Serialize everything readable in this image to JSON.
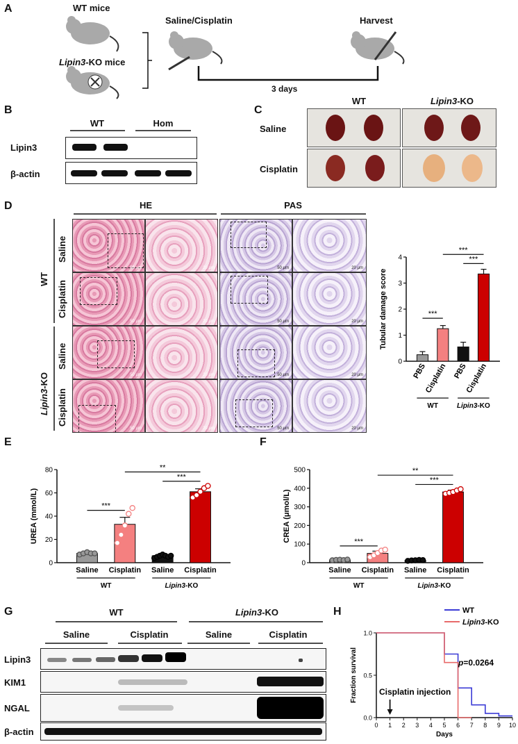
{
  "panels": {
    "A": "A",
    "B": "B",
    "C": "C",
    "D": "D",
    "E": "E",
    "F": "F",
    "G": "G",
    "H": "H"
  },
  "panel_a": {
    "wt": "WT mice",
    "ko_gene": "Lipin3",
    "ko_suffix": "-KO mice",
    "treatment": "Saline/Cisplatin",
    "harvest": "Harvest",
    "duration": "3 days"
  },
  "panel_b": {
    "groups": [
      "WT",
      "Hom"
    ],
    "rows": [
      "Lipin3",
      "β-actin"
    ]
  },
  "panel_c": {
    "cols": [
      "WT",
      "Lipin3",
      "-KO"
    ],
    "rows": [
      "Saline",
      "Cisplatin"
    ]
  },
  "panel_d": {
    "stains": [
      "HE",
      "PAS"
    ],
    "genotypes": [
      "WT",
      "Lipin3",
      "-KO"
    ],
    "rows": [
      "Saline",
      "Cisplatin",
      "Saline",
      "Cisplatin"
    ],
    "scale_50": "50 μm",
    "scale_20": "20 μm"
  },
  "panel_g": {
    "groups": [
      "WT",
      "Lipin3",
      "-KO"
    ],
    "subgroups": [
      "Saline",
      "Cisplatin",
      "Saline",
      "Cisplatin"
    ],
    "rows": [
      "Lipin3",
      "KIM1",
      "NGAL",
      "β-actin"
    ]
  },
  "chart_data": [
    {
      "type": "bar",
      "id": "tubular",
      "ylabel": "Tubular damage score",
      "categories": [
        "PBS",
        "Cisplatin",
        "PBS",
        "Cisplatin"
      ],
      "values": [
        0.25,
        1.25,
        0.55,
        3.35
      ],
      "errors": [
        0.12,
        0.12,
        0.18,
        0.18
      ],
      "colors": [
        "#999999",
        "#f48080",
        "#111111",
        "#cc0000"
      ],
      "ylim": [
        0,
        4
      ],
      "yticks": [
        0,
        1,
        2,
        3,
        4
      ],
      "group_labels": [
        "WT",
        "Lipin3",
        "-KO"
      ],
      "sig": [
        "***",
        "***",
        "***"
      ]
    },
    {
      "type": "bar",
      "id": "urea",
      "ylabel": "UREA (mmol/L)",
      "categories": [
        "Saline",
        "Cisplatin",
        "Saline",
        "Cisplatin"
      ],
      "values": [
        8,
        33,
        6,
        61
      ],
      "errors": [
        1,
        6,
        1,
        2.5
      ],
      "points": [
        [
          7,
          8,
          9,
          8,
          8
        ],
        [
          17,
          24,
          32,
          42,
          47
        ],
        [
          4,
          5,
          6,
          7,
          6,
          5,
          6
        ],
        [
          56,
          58,
          61,
          64,
          66
        ]
      ],
      "colors": [
        "#999999",
        "#f48080",
        "#111111",
        "#cc0000"
      ],
      "ylim": [
        0,
        80
      ],
      "yticks": [
        0,
        20,
        40,
        60,
        80
      ],
      "group_labels": [
        "WT",
        "Lipin3",
        "-KO"
      ],
      "sig": [
        "***",
        "**",
        "***"
      ]
    },
    {
      "type": "bar",
      "id": "crea",
      "ylabel": "CREA (μmol/L)",
      "categories": [
        "Saline",
        "Cisplatin",
        "Saline",
        "Cisplatin"
      ],
      "values": [
        15,
        50,
        13,
        380
      ],
      "errors": [
        2,
        12,
        2,
        10
      ],
      "points": [
        [
          13,
          15,
          16,
          14,
          17
        ],
        [
          30,
          40,
          52,
          65,
          70
        ],
        [
          10,
          12,
          13,
          15,
          14
        ],
        [
          370,
          375,
          380,
          388,
          395
        ]
      ],
      "colors": [
        "#999999",
        "#f48080",
        "#111111",
        "#cc0000"
      ],
      "ylim": [
        0,
        500
      ],
      "yticks": [
        0,
        100,
        200,
        300,
        400,
        500
      ],
      "group_labels": [
        "WT",
        "Lipin3",
        "-KO"
      ],
      "sig": [
        "***",
        "**",
        "***"
      ]
    },
    {
      "type": "line",
      "id": "survival",
      "xlabel": "Days",
      "ylabel": "Fraction survival",
      "xlim": [
        0,
        10
      ],
      "ylim": [
        0,
        1
      ],
      "xticks": [
        0,
        1,
        2,
        3,
        4,
        5,
        6,
        7,
        8,
        9,
        10
      ],
      "yticks": [
        0.0,
        0.5,
        1.0
      ],
      "ytick_labels": [
        "0.0",
        "0.5",
        "1.0"
      ],
      "series": [
        {
          "name": "WT",
          "color": "#3b3bd6",
          "x": [
            0,
            5,
            5,
            6,
            6,
            7,
            7,
            8,
            8,
            9,
            9,
            10
          ],
          "y": [
            1.0,
            1.0,
            0.75,
            0.75,
            0.35,
            0.35,
            0.15,
            0.15,
            0.05,
            0.05,
            0.02,
            0.02
          ]
        },
        {
          "name": "Lipin3-KO",
          "color": "#e86a6a",
          "x": [
            0,
            5,
            5,
            6,
            6,
            7
          ],
          "y": [
            1.0,
            1.0,
            0.65,
            0.65,
            0.0,
            0.0
          ]
        }
      ],
      "legend": [
        "WT",
        "Lipin3",
        "-KO"
      ],
      "pvalue_prefix": "p",
      "pvalue": "=0.0264",
      "annotation": "Cisplatin injection"
    }
  ]
}
